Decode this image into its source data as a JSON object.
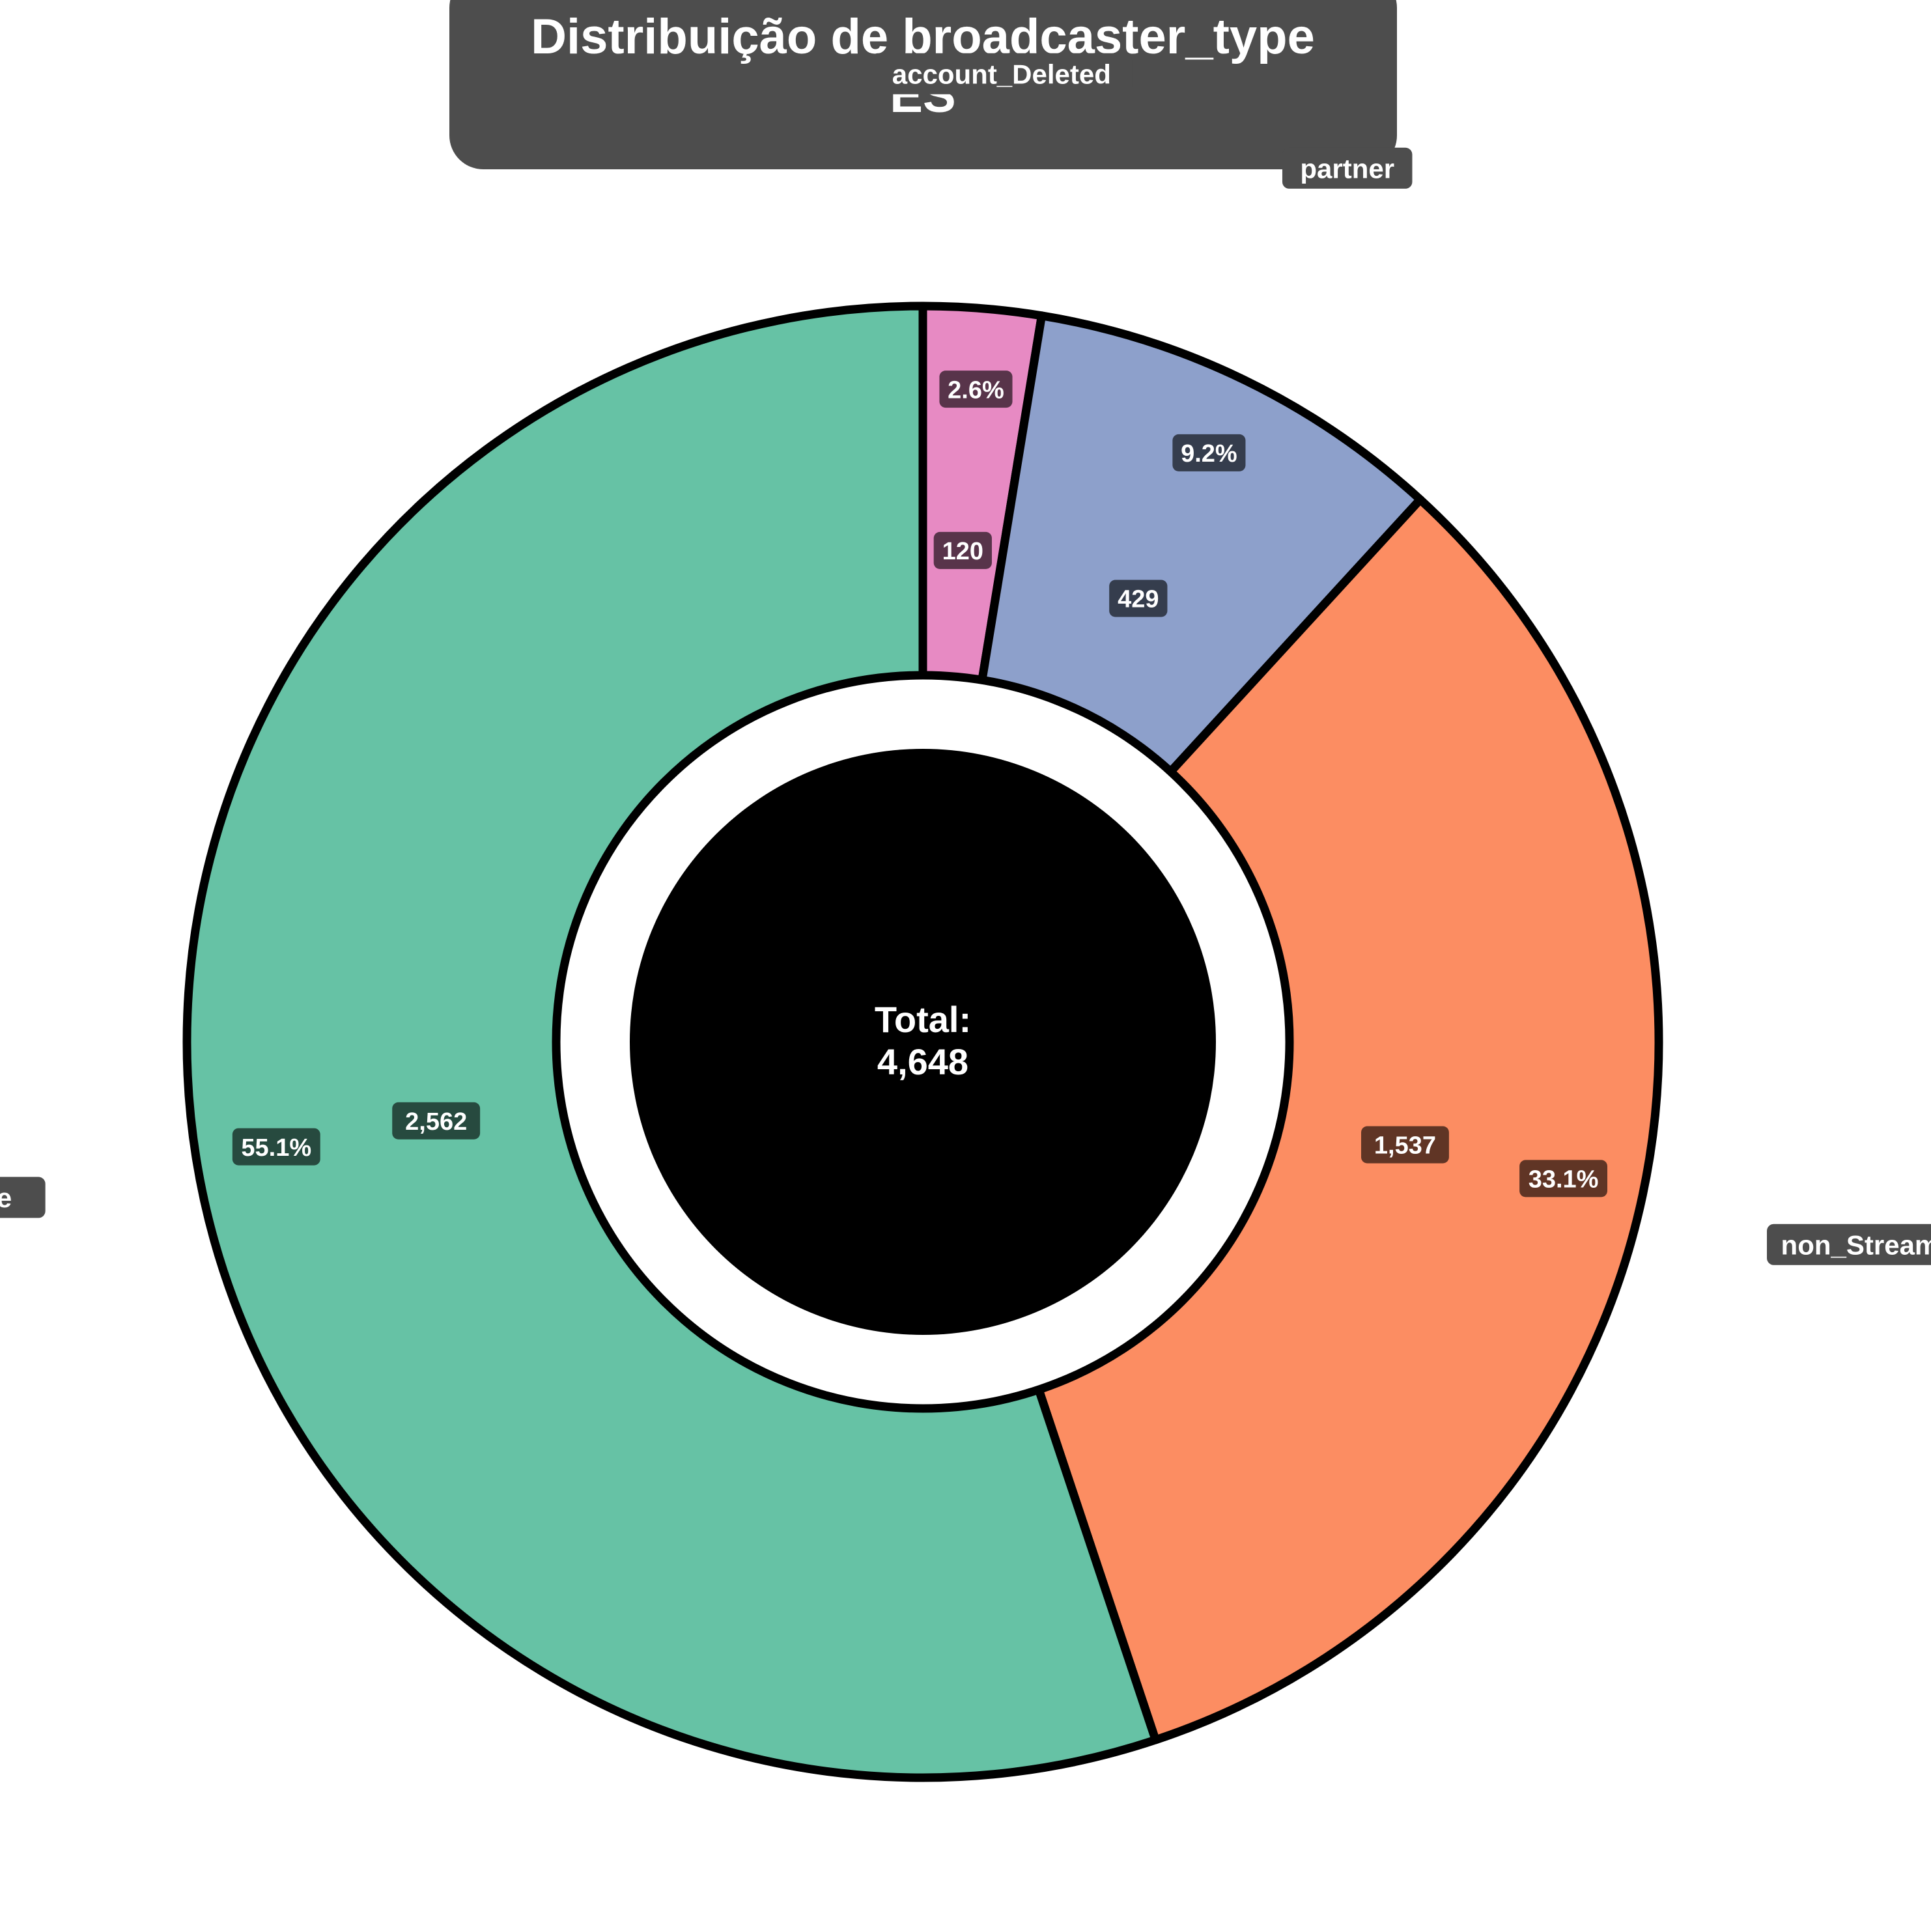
{
  "chart_data": {
    "type": "pie",
    "donut": true,
    "title_line1": "Distribuição de broadcaster_type",
    "title_line2": "ES",
    "center_label": "Total:",
    "center_value": "4,648",
    "slices": [
      {
        "label": "account_Deleted",
        "value": 120,
        "value_text": "120",
        "percent": 2.6,
        "percent_text": "2.6%",
        "color": "#e78ac3"
      },
      {
        "label": "partner",
        "value": 429,
        "value_text": "429",
        "percent": 9.2,
        "percent_text": "9.2%",
        "color": "#8da0cb"
      },
      {
        "label": "non_Streamer",
        "value": 1537,
        "value_text": "1,537",
        "percent": 33.1,
        "percent_text": "33.1%",
        "color": "#fc8d62"
      },
      {
        "label": "affiliate",
        "value": 2562,
        "value_text": "2,562",
        "percent": 55.1,
        "percent_text": "55.1%",
        "color": "#66c2a5"
      }
    ],
    "start": "top",
    "direction": "clockwise",
    "hole_color": "#000000",
    "title_box_color": "#4d4d4d"
  }
}
